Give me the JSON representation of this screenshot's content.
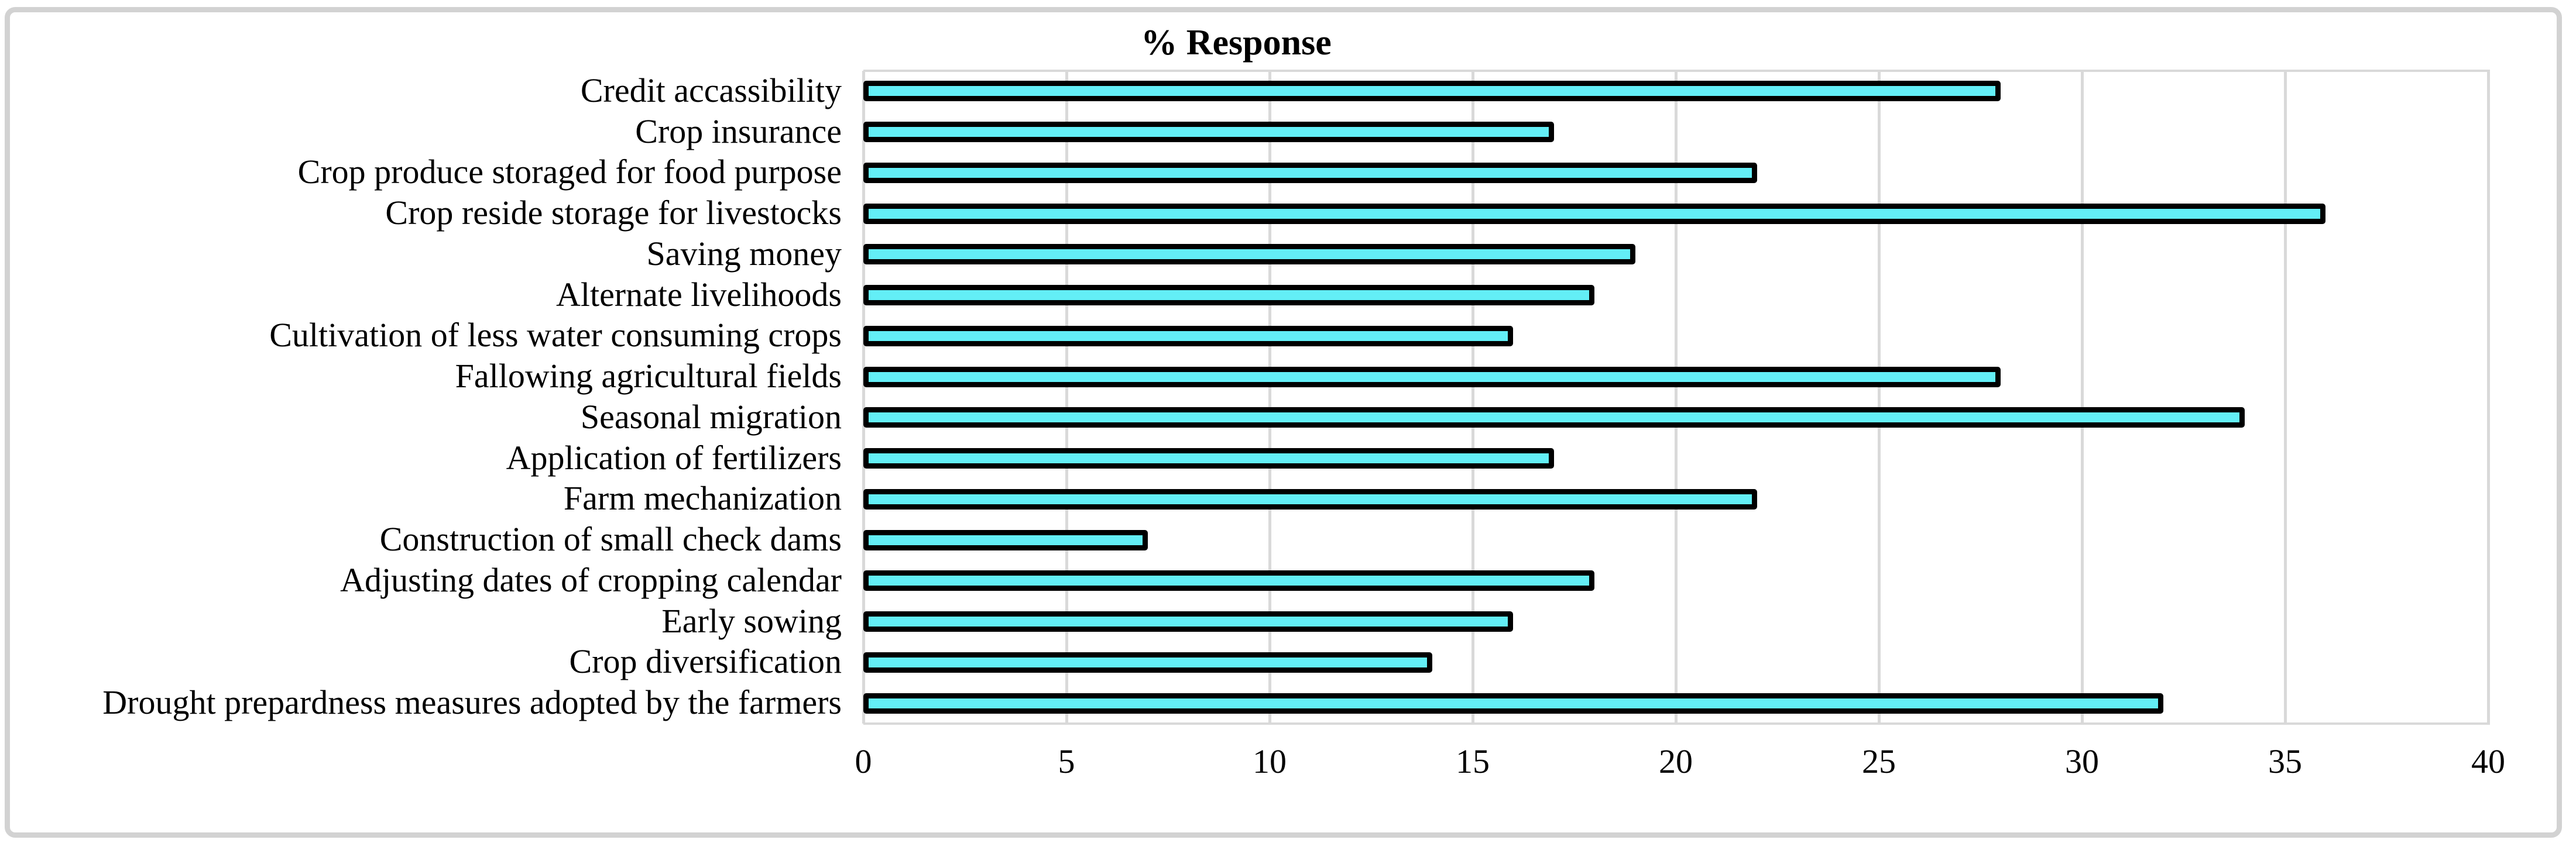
{
  "figure": {
    "background": "#ffffff",
    "frame_color": "#d2d2d2"
  },
  "chart_data": {
    "type": "bar",
    "orientation": "horizontal",
    "title": "% Response",
    "xlabel": "",
    "ylabel": "",
    "xlim": [
      0,
      40
    ],
    "xticks": [
      0,
      5,
      10,
      15,
      20,
      25,
      30,
      35,
      40
    ],
    "grid": "vertical",
    "legend": "none",
    "categories": [
      "Credit accassibility",
      "Crop insurance",
      "Crop produce storaged for food purpose",
      "Crop reside storage for livestocks",
      "Saving money",
      "Alternate livelihoods",
      "Cultivation of less water consuming crops",
      "Fallowing agricultural fields",
      "Seasonal migration",
      "Application of fertilizers",
      "Farm mechanization",
      "Construction of small check dams",
      "Adjusting dates of cropping calendar",
      "Early sowing",
      "Crop diversification",
      "Drought prepardness measures adopted by the farmers"
    ],
    "values": [
      28,
      17,
      22,
      36,
      19,
      18,
      16,
      28,
      34,
      17,
      22,
      7,
      18,
      16,
      14,
      32
    ],
    "bar_fill_color": "#63eef6",
    "bar_border_color": "#000000",
    "gridline_color": "#d9d9d9",
    "axis_line_color": "#d9d9d9",
    "text_color": "#000000"
  }
}
